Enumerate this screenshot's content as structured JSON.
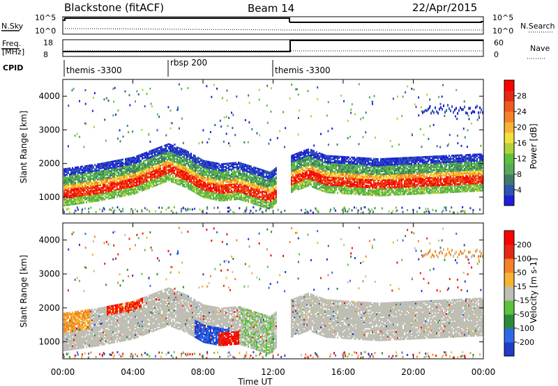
{
  "header": {
    "radar": "Blackstone (fitACF)",
    "beam": "Beam 14",
    "date": "22/Apr/2015"
  },
  "strips": {
    "nsky": {
      "label": "N.Sky",
      "ticks": [
        "10^5",
        "10^0"
      ]
    },
    "nsearch": {
      "label": "N.Search",
      "ticks": [
        "10^5",
        "10^0"
      ]
    },
    "freq": {
      "label_line1": "Freq.",
      "label_line2": "[MHz]",
      "ticks": [
        "18",
        "8"
      ]
    },
    "nave": {
      "label": "Nave",
      "ticks": [
        "60",
        "0"
      ]
    },
    "cpid": {
      "label": "CPID",
      "segments": [
        "themis -3300",
        "rbsp 200",
        "themis -3300"
      ]
    }
  },
  "chart_data": [
    {
      "type": "heatmap",
      "parameter": "Power",
      "ylabel": "Slant Range [km]",
      "colorbar_label": "Power [dB]",
      "x": [
        "00:00",
        "04:00",
        "08:00",
        "12:00",
        "16:00",
        "20:00",
        "00:00"
      ],
      "xlim_hours": [
        0,
        24
      ],
      "ylim": [
        500,
        4500
      ],
      "y_ticks": [
        1000,
        2000,
        3000,
        4000
      ],
      "colorbar_ticks": [
        4,
        8,
        12,
        16,
        20,
        24,
        28
      ],
      "colorbar_colors": [
        "#1f1fdc",
        "#2f55b2",
        "#3d7c6a",
        "#59a85a",
        "#5cc23c",
        "#b2d23c",
        "#f0e23c",
        "#f5b432",
        "#f58228",
        "#f05a1e",
        "#e62814",
        "#ff0000"
      ],
      "band_center_km": [
        [
          0,
          1150
        ],
        [
          2,
          1300
        ],
        [
          4,
          1500
        ],
        [
          6,
          1900
        ],
        [
          7,
          1700
        ],
        [
          8,
          1400
        ],
        [
          9,
          1300
        ],
        [
          10,
          1350
        ],
        [
          11.8,
          1050
        ],
        [
          13,
          1550
        ],
        [
          14,
          1750
        ],
        [
          15,
          1550
        ],
        [
          18,
          1450
        ],
        [
          20,
          1500
        ],
        [
          24,
          1600
        ]
      ]
    },
    {
      "type": "heatmap",
      "parameter": "Velocity",
      "ylabel": "Slant Range [km]",
      "colorbar_label": "Velocity [m s-1]",
      "x": [
        "00:00",
        "04:00",
        "08:00",
        "12:00",
        "16:00",
        "20:00",
        "00:00"
      ],
      "xlim_hours": [
        0,
        24
      ],
      "ylim": [
        500,
        4500
      ],
      "y_ticks": [
        1000,
        2000,
        3000,
        4000
      ],
      "colorbar_ticks": [
        200,
        100,
        50,
        15,
        -15,
        -50,
        -100,
        -200
      ],
      "colorbar_colors": [
        "#1f3cc8",
        "#2f6ae6",
        "#2a8a3c",
        "#5cc23c",
        "#bebeb4",
        "#f5b432",
        "#f58228",
        "#e62814",
        "#ff0000"
      ],
      "xlabel": "Time UT"
    }
  ],
  "colors": {
    "frame": "#000000",
    "groundscatter": "#bebeb4"
  }
}
